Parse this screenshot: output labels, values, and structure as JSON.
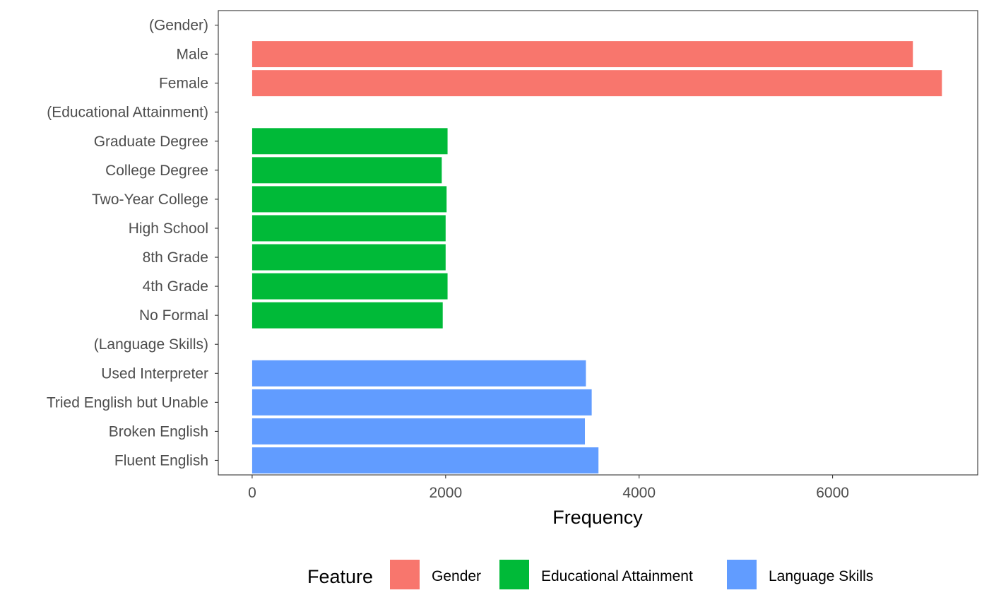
{
  "chart_data": {
    "type": "bar",
    "orientation": "horizontal",
    "categories": [
      "(Gender)",
      "Male",
      "Female",
      "(Educational Attainment)",
      "Graduate Degree",
      "College Degree",
      "Two-Year College",
      "High School",
      "8th Grade",
      "4th Grade",
      "No Formal",
      "(Language Skills)",
      "Used Interpreter",
      "Tried English but Unable",
      "Broken English",
      "Fluent English"
    ],
    "values": [
      null,
      6830,
      7130,
      null,
      2020,
      1960,
      2010,
      2000,
      2000,
      2020,
      1970,
      null,
      3450,
      3510,
      3440,
      3580
    ],
    "groups": [
      "",
      "Gender",
      "Gender",
      "",
      "Educational Attainment",
      "Educational Attainment",
      "Educational Attainment",
      "Educational Attainment",
      "Educational Attainment",
      "Educational Attainment",
      "Educational Attainment",
      "",
      "Language Skills",
      "Language Skills",
      "Language Skills",
      "Language Skills"
    ],
    "xlabel": "Frequency",
    "ylabel": "",
    "xlim": [
      -350,
      7500
    ],
    "xticks": [
      0,
      2000,
      4000,
      6000
    ],
    "xtick_labels": [
      "0",
      "2000",
      "4000",
      "6000"
    ],
    "grid": false,
    "legend": {
      "title": "Feature",
      "placement": "bottom",
      "items": [
        {
          "name": "Gender",
          "color": "#F8766D"
        },
        {
          "name": "Educational Attainment",
          "color": "#00BA38"
        },
        {
          "name": "Language Skills",
          "color": "#619CFF"
        }
      ]
    }
  }
}
